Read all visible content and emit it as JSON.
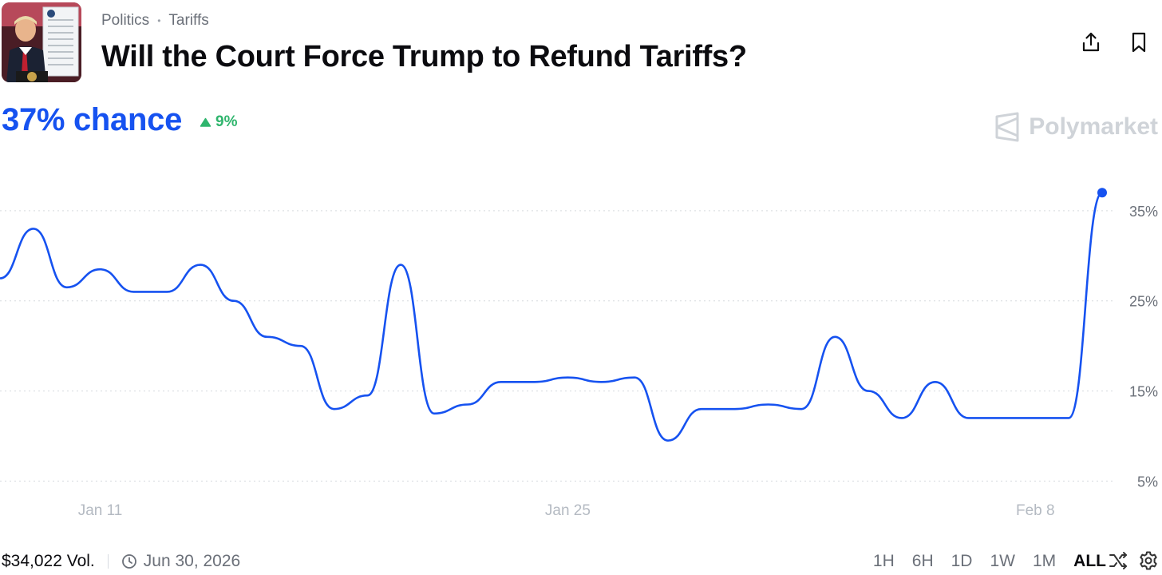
{
  "header": {
    "breadcrumbs": [
      "Politics",
      "Tariffs"
    ],
    "title": "Will the Court Force Trump to Refund Tariffs?",
    "thumbnail_icon": "market-thumbnail-image"
  },
  "actions": {
    "share_icon": "share-icon",
    "bookmark_icon": "bookmark-icon"
  },
  "probability": {
    "value": "37% chance",
    "change": "9%",
    "change_direction": "up",
    "change_color": "#2fb56d",
    "accent_color": "#1652f0"
  },
  "brand": {
    "name": "Polymarket",
    "logo_icon": "polymarket-logo-icon"
  },
  "chart_data": {
    "type": "line",
    "x_tick_labels": [
      "Jan 11",
      "Jan 25",
      "Feb 8"
    ],
    "y_tick_labels": [
      "35%",
      "25%",
      "15%",
      "5%"
    ],
    "y_ticks": [
      35,
      25,
      15,
      5
    ],
    "ylim": [
      3,
      38
    ],
    "grid": true,
    "line_color": "#1652f0",
    "x": [
      "Jan 8",
      "Jan 9",
      "Jan 10",
      "Jan 11",
      "Jan 12",
      "Jan 13",
      "Jan 14",
      "Jan 15",
      "Jan 16",
      "Jan 17",
      "Jan 18",
      "Jan 19",
      "Jan 20",
      "Jan 21",
      "Jan 22",
      "Jan 23",
      "Jan 24",
      "Jan 25",
      "Jan 26",
      "Jan 27",
      "Jan 28",
      "Jan 29",
      "Jan 30",
      "Jan 31",
      "Feb 1",
      "Feb 2",
      "Feb 3",
      "Feb 4",
      "Feb 5",
      "Feb 6",
      "Feb 7",
      "Feb 8",
      "Feb 9",
      "Feb 10"
    ],
    "series": [
      {
        "values": [
          27.5,
          33,
          26.5,
          28.5,
          26,
          26,
          29,
          25,
          21,
          20,
          13,
          14.5,
          29,
          12.5,
          13.5,
          16,
          16,
          16.5,
          16,
          16.5,
          9.5,
          13,
          13,
          13.5,
          13,
          21,
          15,
          12,
          16,
          12,
          12,
          12,
          12,
          37
        ]
      }
    ]
  },
  "footer": {
    "volume": "$34,022 Vol.",
    "end_date": "Jun 30, 2026",
    "clock_icon": "clock-icon",
    "ranges": [
      "1H",
      "6H",
      "1D",
      "1W",
      "1M",
      "ALL"
    ],
    "active_range": "ALL",
    "shuffle_icon": "shuffle-icon",
    "settings_icon": "gear-icon"
  }
}
